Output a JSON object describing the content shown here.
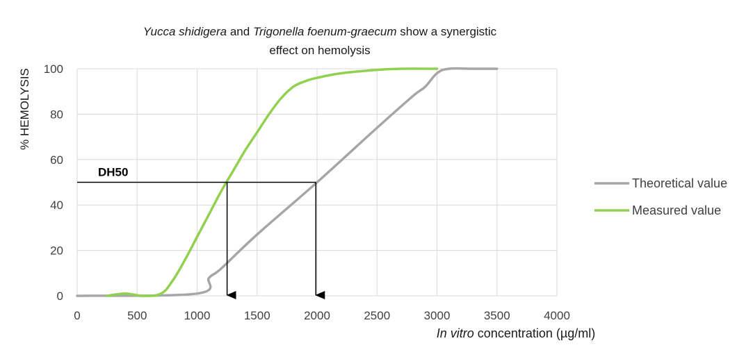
{
  "chart_data": {
    "type": "line",
    "title_parts": [
      {
        "text": "Yucca shidigera",
        "italic": true
      },
      {
        "text": " and ",
        "italic": false
      },
      {
        "text": "Trigonella foenum-graecum",
        "italic": true
      },
      {
        "text": " show a synergistic",
        "italic": false
      }
    ],
    "title_line2": "effect on hemolysis",
    "xlabel_italic": "In vitro",
    "xlabel_rest": " concentration (µg/ml)",
    "ylabel": "% HEMOLYSIS",
    "xlim": [
      0,
      4000
    ],
    "ylim": [
      0,
      100
    ],
    "xticks": [
      0,
      500,
      1000,
      1500,
      2000,
      2500,
      3000,
      3500,
      4000
    ],
    "yticks": [
      0,
      20,
      40,
      60,
      80,
      100
    ],
    "grid": "vertical and horizontal",
    "legend_position": "right",
    "series": [
      {
        "name": "Theoretical value",
        "color": "#a6a6a6",
        "x": [
          0,
          1000,
          1100,
          1200,
          1500,
          2000,
          2500,
          2800,
          2900,
          3000,
          3100,
          3300,
          3500
        ],
        "y": [
          0,
          1,
          8,
          12,
          27,
          50,
          74,
          88,
          92,
          98,
          100,
          100,
          100
        ]
      },
      {
        "name": "Measured value",
        "color": "#92d050",
        "x": [
          250,
          400,
          550,
          700,
          800,
          900,
          1000,
          1100,
          1200,
          1300,
          1400,
          1500,
          1600,
          1700,
          1800,
          1900,
          2000,
          2200,
          2500,
          2700,
          3000
        ],
        "y": [
          0,
          1,
          0,
          1,
          7,
          16,
          26,
          36,
          46,
          55,
          64,
          72,
          80,
          87,
          92,
          94.5,
          96,
          98,
          99.5,
          100,
          100
        ]
      }
    ],
    "annotation": {
      "label": "DH50",
      "level": 50,
      "x_measured": 1250,
      "x_theoretical": 1990,
      "color": "#000000"
    }
  }
}
